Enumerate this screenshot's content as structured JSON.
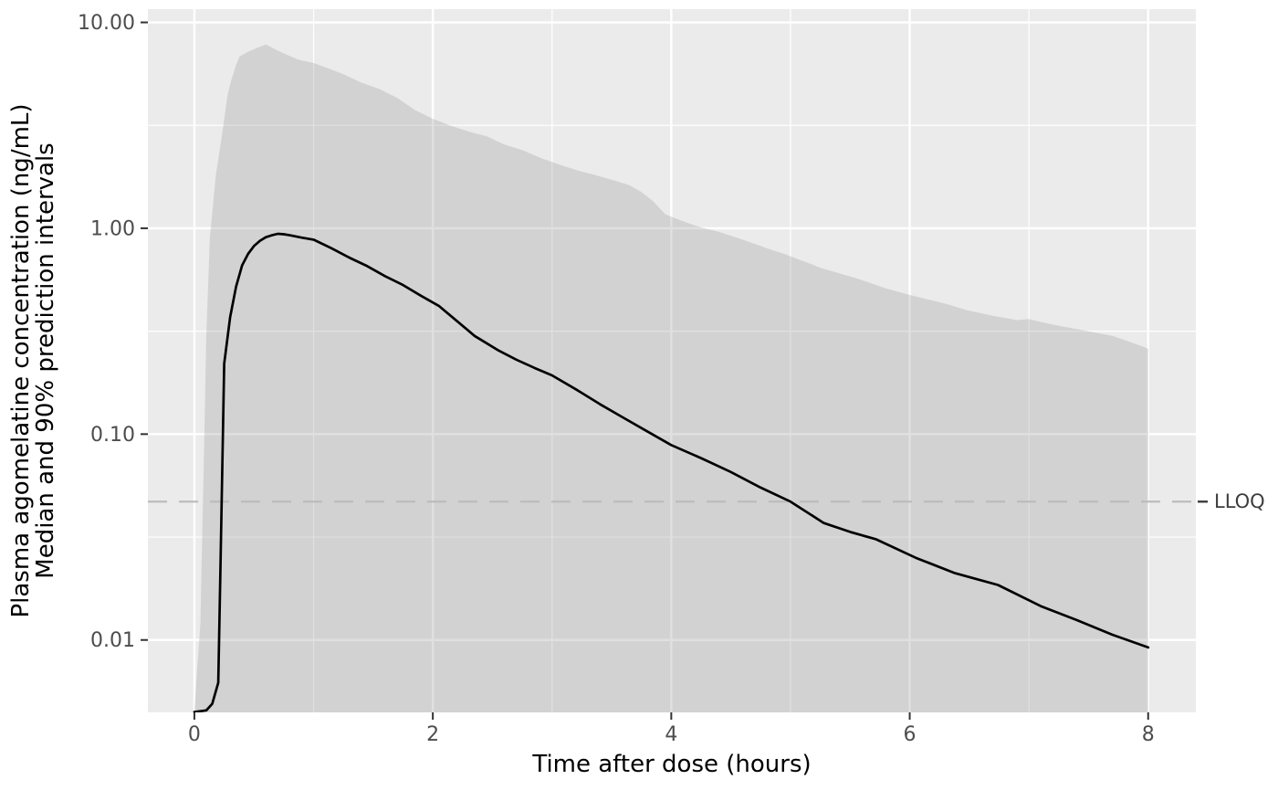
{
  "chart_data": {
    "type": "line",
    "title": "",
    "xlabel": "Time after dose (hours)",
    "ylabel_line1": "Plasma agomelatine concentration (ng/mL)",
    "ylabel_line2": "Median and 90% prediction intervals",
    "legend": "none",
    "grid": "on",
    "x_axis": {
      "scale": "linear",
      "lim": [
        -0.39,
        8.4
      ],
      "ticks": [
        {
          "value": 0,
          "label": "0"
        },
        {
          "value": 2,
          "label": "2"
        },
        {
          "value": 4,
          "label": "4"
        },
        {
          "value": 6,
          "label": "6"
        },
        {
          "value": 8,
          "label": "8"
        }
      ],
      "minor": [
        1,
        3,
        5,
        7
      ]
    },
    "y_axis": {
      "scale": "log10",
      "lim": [
        0.00445,
        11.6
      ],
      "ticks": [
        {
          "value": 10,
          "label": "10.00"
        },
        {
          "value": 1,
          "label": "1.00"
        },
        {
          "value": 0.1,
          "label": "0.10"
        },
        {
          "value": 0.01,
          "label": "0.01"
        }
      ],
      "minor": [
        3.162,
        0.3162,
        0.03162
      ]
    },
    "lloq": {
      "value": 0.047,
      "label": "LLOQ"
    },
    "series": [
      {
        "name": "median",
        "type": "line",
        "color": "#000000",
        "points": [
          [
            0,
            0.00447
          ],
          [
            0.1,
            0.00455
          ],
          [
            0.15,
            0.0049
          ],
          [
            0.2,
            0.0062
          ],
          [
            0.22,
            0.025
          ],
          [
            0.25,
            0.22
          ],
          [
            0.3,
            0.37
          ],
          [
            0.35,
            0.52
          ],
          [
            0.4,
            0.66
          ],
          [
            0.45,
            0.75
          ],
          [
            0.5,
            0.82
          ],
          [
            0.55,
            0.87
          ],
          [
            0.6,
            0.905
          ],
          [
            0.65,
            0.925
          ],
          [
            0.7,
            0.94
          ],
          [
            0.75,
            0.935
          ],
          [
            0.8,
            0.925
          ],
          [
            0.9,
            0.9
          ],
          [
            1.0,
            0.88
          ],
          [
            1.15,
            0.8
          ],
          [
            1.3,
            0.72
          ],
          [
            1.45,
            0.655
          ],
          [
            1.6,
            0.585
          ],
          [
            1.75,
            0.53
          ],
          [
            1.9,
            0.47
          ],
          [
            2.05,
            0.42
          ],
          [
            2.2,
            0.355
          ],
          [
            2.35,
            0.3
          ],
          [
            2.55,
            0.255
          ],
          [
            2.7,
            0.23
          ],
          [
            2.85,
            0.21
          ],
          [
            3.0,
            0.193
          ],
          [
            3.2,
            0.165
          ],
          [
            3.4,
            0.14
          ],
          [
            3.6,
            0.12
          ],
          [
            3.8,
            0.103
          ],
          [
            4.0,
            0.0885
          ],
          [
            4.25,
            0.0765
          ],
          [
            4.5,
            0.0655
          ],
          [
            4.75,
            0.055
          ],
          [
            5.0,
            0.047
          ],
          [
            5.28,
            0.037
          ],
          [
            5.5,
            0.0335
          ],
          [
            5.72,
            0.0308
          ],
          [
            6.05,
            0.0251
          ],
          [
            6.38,
            0.0211
          ],
          [
            6.74,
            0.0185
          ],
          [
            7.1,
            0.0146
          ],
          [
            7.4,
            0.0125
          ],
          [
            7.7,
            0.0106
          ],
          [
            8.0,
            0.0092
          ]
        ]
      },
      {
        "name": "pi90_upper",
        "type": "ribbon_upper_bound",
        "points": [
          [
            0,
            0.0045
          ],
          [
            0.05,
            0.012
          ],
          [
            0.08,
            0.08
          ],
          [
            0.1,
            0.3
          ],
          [
            0.13,
            0.9
          ],
          [
            0.18,
            1.8
          ],
          [
            0.23,
            2.8
          ],
          [
            0.28,
            4.5
          ],
          [
            0.31,
            5.25
          ],
          [
            0.35,
            6.2
          ],
          [
            0.38,
            6.85
          ],
          [
            0.45,
            7.2
          ],
          [
            0.52,
            7.5
          ],
          [
            0.6,
            7.82
          ],
          [
            0.66,
            7.5
          ],
          [
            0.72,
            7.2
          ],
          [
            0.87,
            6.6
          ],
          [
            1.0,
            6.35
          ],
          [
            1.1,
            6.05
          ],
          [
            1.25,
            5.6
          ],
          [
            1.4,
            5.1
          ],
          [
            1.55,
            4.75
          ],
          [
            1.7,
            4.3
          ],
          [
            1.85,
            3.75
          ],
          [
            2.0,
            3.4
          ],
          [
            2.15,
            3.15
          ],
          [
            2.3,
            2.95
          ],
          [
            2.45,
            2.8
          ],
          [
            2.6,
            2.55
          ],
          [
            2.75,
            2.4
          ],
          [
            2.9,
            2.2
          ],
          [
            3.05,
            2.05
          ],
          [
            3.2,
            1.92
          ],
          [
            3.35,
            1.82
          ],
          [
            3.5,
            1.72
          ],
          [
            3.65,
            1.62
          ],
          [
            3.75,
            1.5
          ],
          [
            3.85,
            1.35
          ],
          [
            3.95,
            1.17
          ],
          [
            4.1,
            1.08
          ],
          [
            4.25,
            1.01
          ],
          [
            4.4,
            0.96
          ],
          [
            4.6,
            0.88
          ],
          [
            4.8,
            0.8
          ],
          [
            4.95,
            0.75
          ],
          [
            5.26,
            0.64
          ],
          [
            5.56,
            0.57
          ],
          [
            5.8,
            0.51
          ],
          [
            6.0,
            0.474
          ],
          [
            6.3,
            0.43
          ],
          [
            6.48,
            0.4
          ],
          [
            6.7,
            0.375
          ],
          [
            6.9,
            0.358
          ],
          [
            7.0,
            0.362
          ],
          [
            7.2,
            0.34
          ],
          [
            7.45,
            0.32
          ],
          [
            7.7,
            0.3
          ],
          [
            7.85,
            0.28
          ],
          [
            8.0,
            0.26
          ]
        ]
      },
      {
        "name": "pi90_lower",
        "type": "ribbon_lower_bound",
        "note": "below y-axis range for all times (clipped at panel bottom)"
      }
    ],
    "colors": {
      "panel_background": "#ebebeb",
      "gridline": "#ffffff",
      "ribbon_fill": "#9e9e9e",
      "ribbon_opacity": 0.32,
      "median_line": "#000000",
      "lloq_line": "#bcbcbc",
      "lloq_text": "#3d3d3d",
      "tick_text": "#4d4d4d",
      "tick_mark": "#333333"
    }
  }
}
